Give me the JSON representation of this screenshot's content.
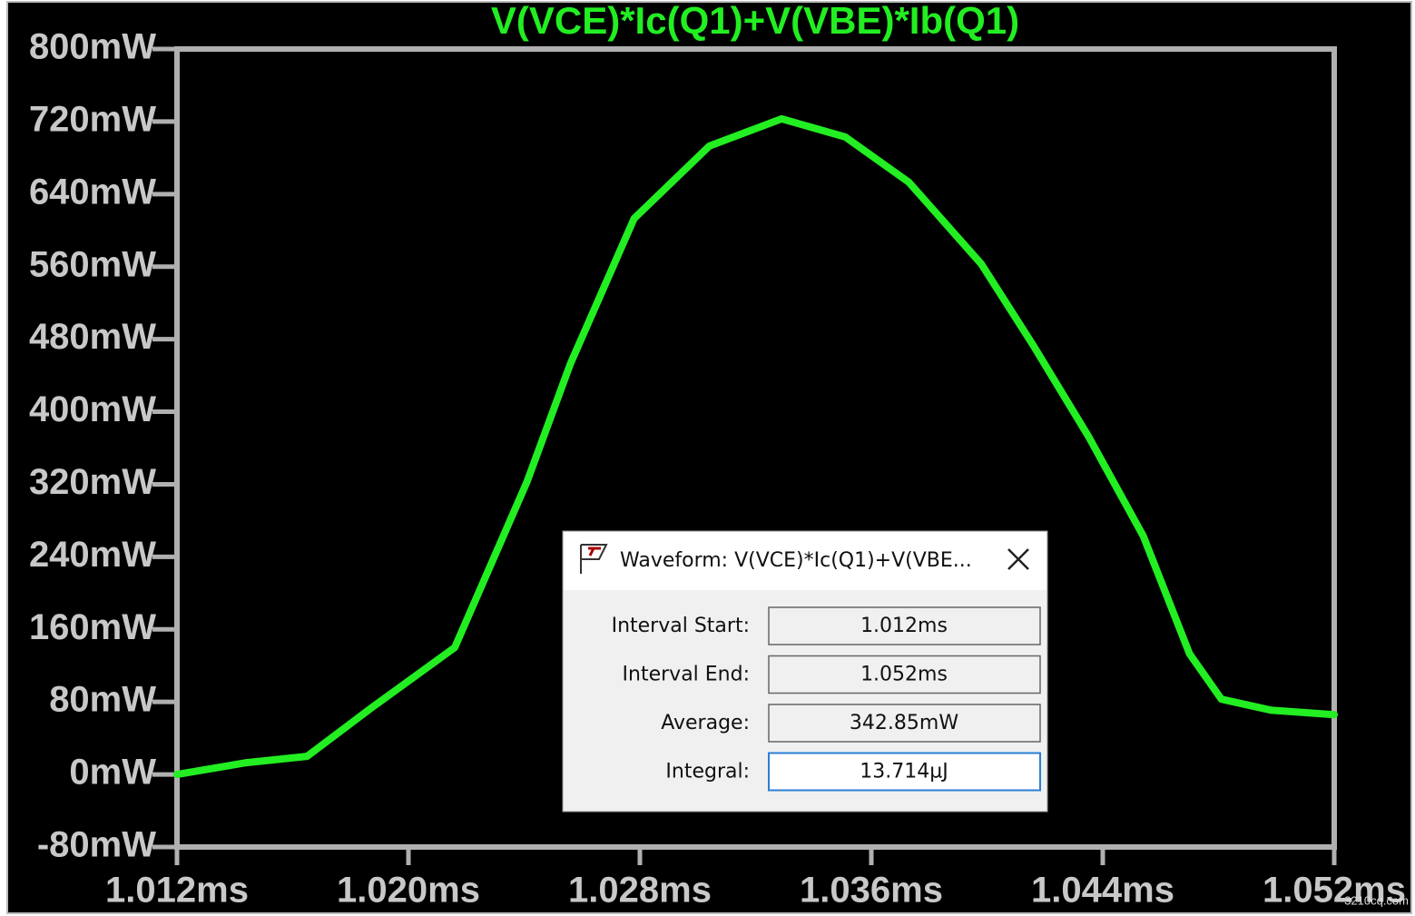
{
  "chart_data": {
    "type": "line",
    "title": "V(VCE)*Ic(Q1)+V(VBE)*Ib(Q1)",
    "color": "#22ee22",
    "x": [
      1.012,
      1.0144,
      1.0165,
      1.0187,
      1.0216,
      1.0241,
      1.0256,
      1.0278,
      1.0304,
      1.0329,
      1.0351,
      1.0373,
      1.0398,
      1.0416,
      1.0435,
      1.0454,
      1.047,
      1.0481,
      1.0498,
      1.052
    ],
    "values": [
      0,
      13,
      20,
      73,
      140,
      323,
      453,
      613,
      693,
      723,
      703,
      653,
      563,
      473,
      373,
      263,
      133,
      83,
      71,
      66
    ],
    "xlim": [
      1.012,
      1.052
    ],
    "xticks": [
      {
        "value": 1.012,
        "label": "1.012ms"
      },
      {
        "value": 1.02,
        "label": "1.020ms"
      },
      {
        "value": 1.028,
        "label": "1.028ms"
      },
      {
        "value": 1.036,
        "label": "1.036ms"
      },
      {
        "value": 1.044,
        "label": "1.044ms"
      },
      {
        "value": 1.052,
        "label": "1.052ms"
      }
    ],
    "ylim": [
      -80,
      800
    ],
    "yticks": [
      {
        "value": -80,
        "label": "-80mW"
      },
      {
        "value": 0,
        "label": "0mW"
      },
      {
        "value": 80,
        "label": "80mW"
      },
      {
        "value": 160,
        "label": "160mW"
      },
      {
        "value": 240,
        "label": "240mW"
      },
      {
        "value": 320,
        "label": "320mW"
      },
      {
        "value": 400,
        "label": "400mW"
      },
      {
        "value": 480,
        "label": "480mW"
      },
      {
        "value": 560,
        "label": "560mW"
      },
      {
        "value": 640,
        "label": "640mW"
      },
      {
        "value": 720,
        "label": "720mW"
      },
      {
        "value": 800,
        "label": "800mW"
      }
    ]
  },
  "dialog": {
    "title": "Waveform: V(VCE)*Ic(Q1)+V(VBE...",
    "fields": [
      {
        "label": "Interval Start:",
        "value": "1.012ms"
      },
      {
        "label": "Interval End:",
        "value": "1.052ms"
      },
      {
        "label": "Average:",
        "value": "342.85mW"
      },
      {
        "label": "Integral:",
        "value": "13.714µJ"
      }
    ]
  },
  "watermark": "3210cq.com"
}
